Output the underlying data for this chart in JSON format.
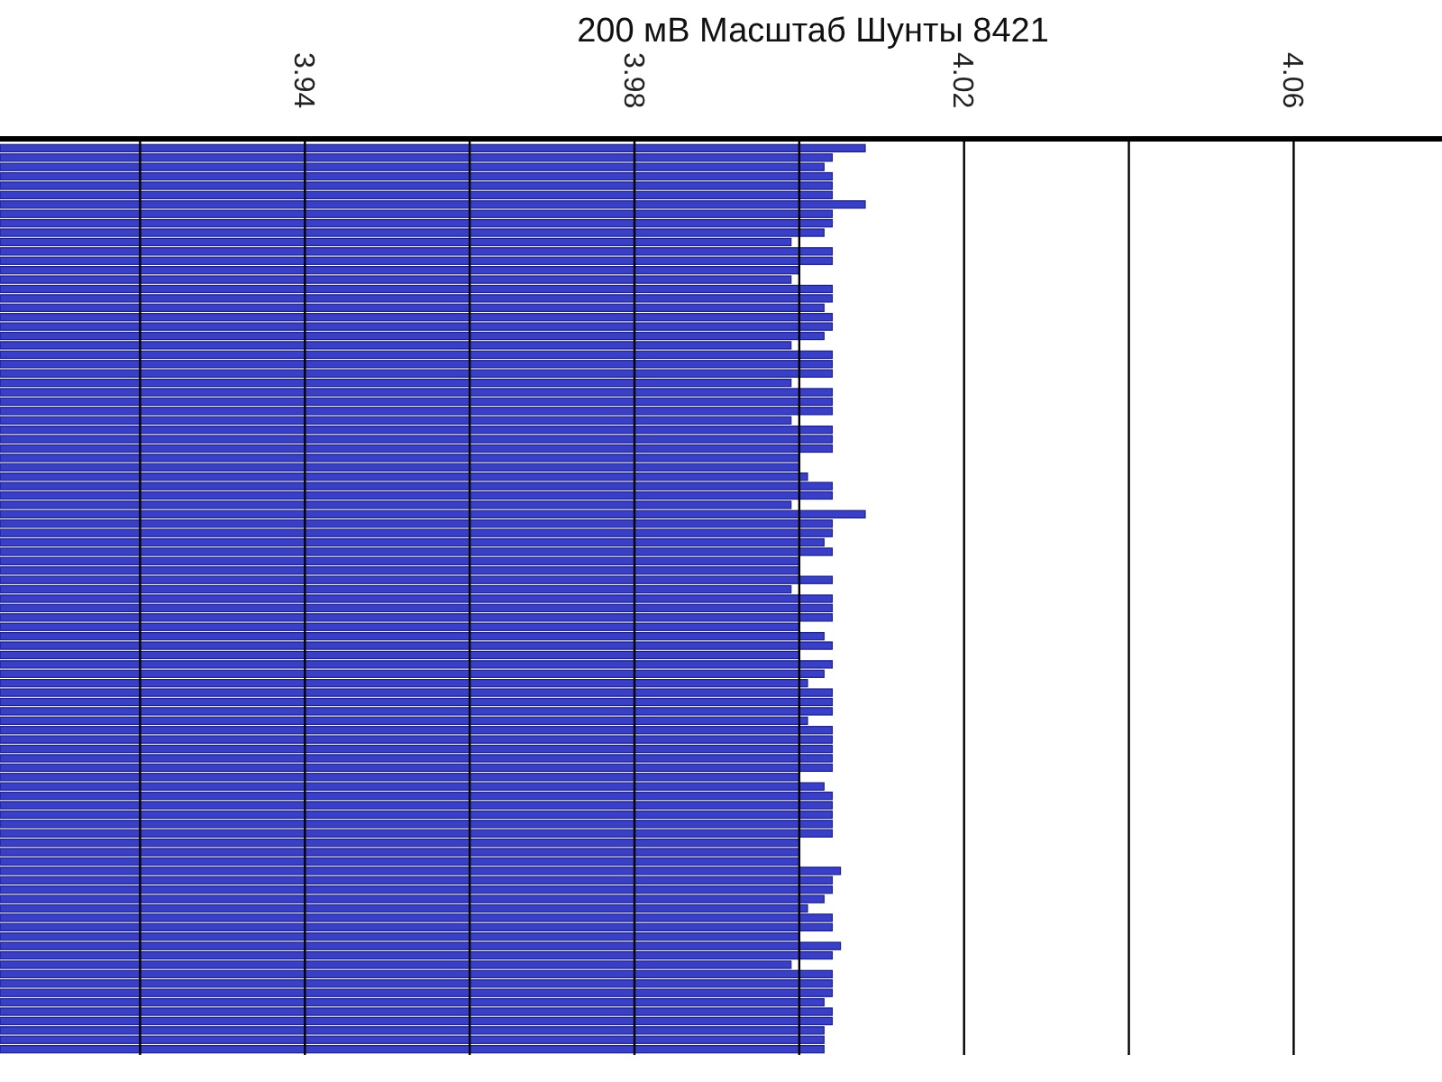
{
  "chart_data": {
    "type": "bar",
    "orientation": "horizontal",
    "title": "200 мВ Масштаб   Шунты 8421",
    "color": "#3a3fc8",
    "categories": [
      null,
      null,
      null,
      null,
      null,
      null,
      null,
      null,
      null,
      null,
      null,
      null,
      null,
      null,
      null,
      null,
      null,
      null,
      null,
      null,
      null,
      null,
      null,
      null,
      null,
      null,
      null,
      null,
      null,
      null,
      null,
      null,
      null,
      null,
      null,
      null,
      null,
      null,
      null,
      null,
      null,
      null,
      null,
      null,
      null,
      null,
      null,
      null,
      null,
      null,
      null,
      null,
      null,
      null,
      null,
      null,
      null,
      null,
      null,
      null,
      null,
      null,
      null,
      null,
      null,
      null,
      null,
      null,
      null,
      null,
      null,
      null,
      null,
      null,
      null,
      null,
      null,
      null,
      null,
      null,
      null,
      null,
      null,
      null,
      null,
      null,
      null,
      null,
      null,
      null,
      null,
      null,
      null,
      null,
      null,
      null,
      null
    ],
    "values": [
      4.008,
      4.004,
      4.003,
      4.004,
      4.004,
      4.004,
      4.008,
      4.004,
      4.004,
      4.003,
      3.999,
      4.004,
      4.004,
      4.0,
      3.999,
      4.004,
      4.004,
      4.003,
      4.004,
      4.004,
      4.003,
      3.999,
      4.004,
      4.004,
      4.004,
      3.999,
      4.004,
      4.004,
      4.004,
      3.999,
      4.004,
      4.004,
      4.004,
      4.0,
      4.0,
      4.001,
      4.004,
      4.004,
      3.999,
      4.008,
      4.004,
      4.004,
      4.003,
      4.004,
      4.0,
      4.0,
      4.004,
      3.999,
      4.004,
      4.004,
      4.004,
      4.0,
      4.003,
      4.004,
      4.0,
      4.004,
      4.003,
      4.001,
      4.004,
      4.004,
      4.004,
      4.001,
      4.004,
      4.004,
      4.004,
      4.004,
      4.004,
      4.0,
      4.003,
      4.004,
      4.004,
      4.004,
      4.004,
      4.004,
      4.0,
      4.0,
      4.0,
      4.005,
      4.004,
      4.004,
      4.003,
      4.001,
      4.004,
      4.004,
      4.0,
      4.005,
      4.004,
      3.999,
      4.004,
      4.004,
      4.004,
      4.003,
      4.004,
      4.004,
      4.003,
      4.003,
      4.003
    ],
    "xlim": [
      3.903,
      4.078
    ],
    "xticks": [
      {
        "value": 3.92,
        "label": null
      },
      3.94,
      {
        "value": 3.96,
        "label": null
      },
      3.98,
      {
        "value": 4.0,
        "label": null
      },
      4.02,
      {
        "value": 4.04,
        "label": null
      },
      4.06
    ],
    "grid": "x"
  }
}
